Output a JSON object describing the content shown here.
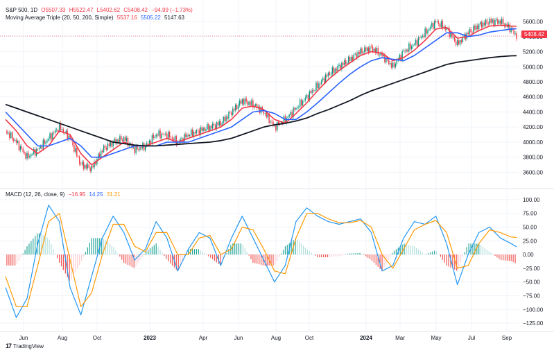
{
  "legend": {
    "symbol": "S&P 500, 1D",
    "open": "O5507.33",
    "high": "H5522.47",
    "low": "L5402.62",
    "close": "C5408.42",
    "change": "−94.99 (−1.73%)",
    "ma_label": "Moving Average Triple (20, 50, 200, Simple)",
    "ma_20": "5537.16",
    "ma_50": "5505.22",
    "ma_200": "5147.63",
    "macd_label": "MACD (12, 26, close, 9)",
    "macd_hist": "−16.95",
    "macd_line": "14.25",
    "macd_signal": "31.21"
  },
  "price_tag": "5408.42",
  "brand": "TradingView",
  "colors": {
    "ma20": "#f23645",
    "ma50": "#2962ff",
    "ma200": "#131722",
    "macd": "#2196f3",
    "signal": "#ff9800",
    "hist_up": "#26a69a",
    "hist_down": "#ef5350",
    "candle_up": "#089981",
    "candle_down": "#f23645"
  },
  "chart_data": [
    {
      "type": "line",
      "title": "",
      "xlabel": "",
      "ylabel": "",
      "x_ticks": [
        "Jun",
        "Aug",
        "Oct",
        "2023",
        "Apr",
        "Jun",
        "Aug",
        "Oct",
        "2024",
        "Mar",
        "May",
        "Jul",
        "Sep"
      ],
      "y_ticks": [
        3600,
        3800,
        4000,
        4200,
        4400,
        4600,
        4800,
        5000,
        5200,
        5400,
        5600
      ],
      "ylim": [
        3420,
        5720
      ],
      "x": [
        0,
        4,
        8,
        12,
        16,
        20,
        24,
        28,
        32,
        36,
        40,
        44,
        48,
        52,
        56,
        60,
        64,
        68,
        72,
        76,
        80,
        84,
        88,
        92,
        96,
        100,
        104,
        108,
        112,
        116,
        120,
        124,
        128,
        132,
        136,
        140,
        144,
        148,
        152,
        156,
        160,
        164,
        168,
        172,
        176,
        180,
        184,
        188,
        190
      ],
      "series": [
        {
          "name": "Close",
          "values": [
            4150,
            4000,
            3800,
            3900,
            4050,
            4200,
            4050,
            3700,
            3650,
            3900,
            4000,
            4050,
            3900,
            3950,
            4100,
            4100,
            4000,
            4100,
            4150,
            4200,
            4250,
            4400,
            4550,
            4500,
            4400,
            4200,
            4300,
            4450,
            4600,
            4750,
            4900,
            5000,
            5100,
            5200,
            5250,
            5150,
            5000,
            5200,
            5300,
            5450,
            5600,
            5500,
            5300,
            5450,
            5550,
            5600,
            5600,
            5500,
            5408
          ]
        },
        {
          "name": "MA 20",
          "values": [
            4300,
            4150,
            3950,
            3850,
            3950,
            4150,
            4100,
            3850,
            3700,
            3800,
            3900,
            4000,
            3950,
            3950,
            4000,
            4050,
            4000,
            4050,
            4100,
            4150,
            4200,
            4300,
            4450,
            4480,
            4430,
            4300,
            4250,
            4380,
            4520,
            4680,
            4830,
            4950,
            5050,
            5150,
            5200,
            5180,
            5080,
            5120,
            5220,
            5350,
            5500,
            5520,
            5380,
            5400,
            5480,
            5540,
            5550,
            5540,
            5537
          ]
        },
        {
          "name": "MA 50",
          "values": [
            4400,
            4250,
            4100,
            3950,
            3950,
            4000,
            4050,
            3950,
            3800,
            3800,
            3850,
            3900,
            3950,
            3950,
            3950,
            4000,
            4000,
            4000,
            4050,
            4100,
            4150,
            4200,
            4300,
            4400,
            4420,
            4380,
            4300,
            4300,
            4400,
            4520,
            4650,
            4780,
            4900,
            5000,
            5080,
            5120,
            5100,
            5080,
            5150,
            5250,
            5350,
            5450,
            5450,
            5400,
            5420,
            5460,
            5480,
            5500,
            5505
          ]
        },
        {
          "name": "MA 200",
          "values": [
            4500,
            4450,
            4400,
            4350,
            4300,
            4250,
            4200,
            4150,
            4100,
            4050,
            4000,
            3980,
            3960,
            3950,
            3950,
            3960,
            3970,
            3980,
            3990,
            4000,
            4020,
            4050,
            4100,
            4150,
            4200,
            4230,
            4250,
            4280,
            4320,
            4380,
            4430,
            4490,
            4550,
            4620,
            4680,
            4730,
            4780,
            4830,
            4880,
            4930,
            4980,
            5030,
            5060,
            5080,
            5100,
            5120,
            5135,
            5145,
            5147
          ]
        }
      ]
    },
    {
      "type": "line",
      "title": "",
      "xlabel": "",
      "ylabel": "",
      "y_ticks": [
        100,
        75,
        50,
        25,
        0,
        -25,
        -50,
        -75,
        -100,
        -125
      ],
      "ylim": [
        -130,
        110
      ],
      "x": [
        0,
        4,
        8,
        12,
        16,
        20,
        24,
        28,
        32,
        36,
        40,
        44,
        48,
        52,
        56,
        60,
        64,
        68,
        72,
        76,
        80,
        84,
        88,
        92,
        96,
        100,
        104,
        108,
        112,
        116,
        120,
        124,
        128,
        132,
        136,
        140,
        144,
        148,
        152,
        156,
        160,
        164,
        168,
        172,
        176,
        180,
        184,
        188,
        190
      ],
      "series": [
        {
          "name": "MACD",
          "values": [
            -60,
            -115,
            -80,
            20,
            90,
            60,
            -60,
            -110,
            -40,
            30,
            70,
            40,
            -10,
            10,
            60,
            30,
            -30,
            10,
            40,
            30,
            -20,
            30,
            70,
            30,
            -10,
            -50,
            -20,
            60,
            85,
            70,
            60,
            55,
            60,
            65,
            40,
            -30,
            -20,
            30,
            60,
            55,
            70,
            20,
            -55,
            0,
            40,
            50,
            30,
            20,
            14
          ]
        },
        {
          "name": "Signal",
          "values": [
            -40,
            -95,
            -95,
            -20,
            60,
            75,
            -10,
            -95,
            -70,
            0,
            55,
            55,
            15,
            5,
            40,
            40,
            0,
            0,
            30,
            35,
            0,
            10,
            50,
            45,
            10,
            -30,
            -35,
            30,
            75,
            75,
            65,
            58,
            58,
            62,
            50,
            0,
            -25,
            10,
            45,
            55,
            62,
            40,
            -25,
            -20,
            20,
            45,
            40,
            32,
            31
          ]
        },
        {
          "name": "Histogram",
          "values": [
            -20,
            -20,
            15,
            40,
            30,
            -15,
            -50,
            -15,
            30,
            30,
            15,
            -15,
            -25,
            5,
            20,
            -10,
            -30,
            10,
            10,
            -5,
            -20,
            20,
            20,
            -15,
            -20,
            -20,
            15,
            30,
            10,
            -5,
            -5,
            -3,
            2,
            3,
            -10,
            -30,
            5,
            20,
            15,
            0,
            8,
            -20,
            -30,
            20,
            20,
            5,
            -10,
            -12,
            -17
          ]
        }
      ]
    }
  ]
}
